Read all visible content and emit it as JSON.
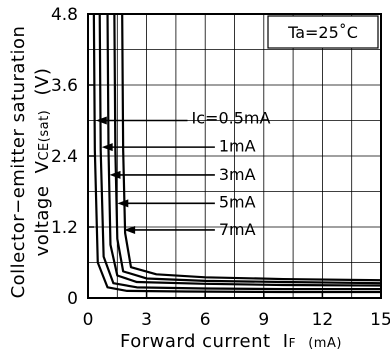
{
  "chart_data": {
    "type": "line",
    "title": "",
    "xlabel": "Forward current",
    "xlabel_symbol": "I",
    "xlabel_subscript": "F",
    "xlabel_unit": "(mA)",
    "ylabel_line1": "Collector−emitter saturation",
    "ylabel_line2": "voltage",
    "ylabel_symbol": "V",
    "ylabel_subscript": "CE(sat)",
    "ylabel_unit": "(V)",
    "condition": "Ta=25˚C",
    "xlim": [
      0,
      15
    ],
    "ylim": [
      0,
      4.8
    ],
    "x_ticks": [
      0,
      3,
      6,
      9,
      12,
      15
    ],
    "y_ticks": [
      0,
      1.2,
      2.4,
      3.6,
      4.8
    ],
    "x_tick_labels": [
      "0",
      "3",
      "6",
      "9",
      "12",
      "15"
    ],
    "y_tick_labels": [
      "0",
      "1.2",
      "2.4",
      "3.6",
      "4.8"
    ],
    "grid": true,
    "series": [
      {
        "name": "Ic=0.5mA",
        "x": [
          0.3,
          0.35,
          0.5,
          1.0,
          2.0,
          5.0,
          10.0,
          15.0
        ],
        "y": [
          4.8,
          2.5,
          0.6,
          0.18,
          0.12,
          0.11,
          0.1,
          0.1
        ]
      },
      {
        "name": "1mA",
        "x": [
          0.6,
          0.65,
          0.8,
          1.3,
          2.5,
          6.0,
          10.0,
          15.0
        ],
        "y": [
          4.8,
          2.5,
          0.7,
          0.25,
          0.18,
          0.16,
          0.15,
          0.15
        ]
      },
      {
        "name": "3mA",
        "x": [
          1.0,
          1.05,
          1.15,
          1.5,
          2.5,
          6.0,
          10.0,
          15.0
        ],
        "y": [
          4.8,
          2.5,
          0.9,
          0.38,
          0.27,
          0.24,
          0.22,
          0.21
        ]
      },
      {
        "name": "5mA",
        "x": [
          1.35,
          1.4,
          1.5,
          1.8,
          3.0,
          6.0,
          10.0,
          15.0
        ],
        "y": [
          4.8,
          2.5,
          1.0,
          0.45,
          0.33,
          0.29,
          0.27,
          0.25
        ]
      },
      {
        "name": "7mA",
        "x": [
          1.75,
          1.8,
          1.9,
          2.2,
          3.5,
          6.0,
          10.0,
          15.0
        ],
        "y": [
          4.8,
          2.5,
          1.1,
          0.52,
          0.4,
          0.35,
          0.32,
          0.3
        ]
      }
    ],
    "annotations": [
      {
        "label": "Ic=0.5mA",
        "x_text": 5.3,
        "y_text": 3.05,
        "x_arrow": 0.4,
        "y_arrow": 3.0
      },
      {
        "label": "1mA",
        "x_text": 6.7,
        "y_text": 2.58,
        "x_arrow": 0.7,
        "y_arrow": 2.55
      },
      {
        "label": "3mA",
        "x_text": 6.7,
        "y_text": 2.1,
        "x_arrow": 1.1,
        "y_arrow": 2.08
      },
      {
        "label": "5mA",
        "x_text": 6.7,
        "y_text": 1.63,
        "x_arrow": 1.5,
        "y_arrow": 1.6
      },
      {
        "label": "7mA",
        "x_text": 6.7,
        "y_text": 1.17,
        "x_arrow": 1.85,
        "y_arrow": 1.15
      }
    ]
  }
}
